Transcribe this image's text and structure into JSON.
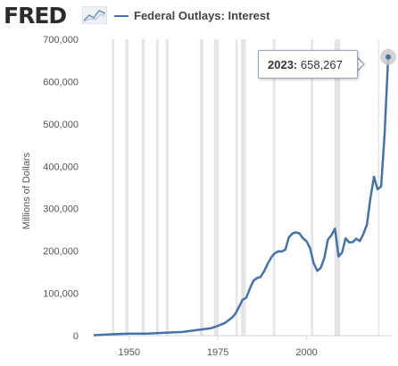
{
  "header": {
    "logo_text": "FRED",
    "logo_icon": "line-chart-icon",
    "series_name": "Federal Outlays: Interest"
  },
  "tooltip": {
    "year": "2023:",
    "value": "658,267"
  },
  "colors": {
    "series": "#4572a7",
    "recession": "#e5e5e5",
    "axis_text": "#555555"
  },
  "chart_data": {
    "type": "line",
    "title": "",
    "xlabel": "",
    "ylabel": "Millions of Dollars",
    "ylim": [
      0,
      700000
    ],
    "xlim": [
      1940,
      2024
    ],
    "grid": false,
    "legend": "top-left",
    "y_ticks": [
      "0",
      "100,000",
      "200,000",
      "300,000",
      "400,000",
      "500,000",
      "600,000",
      "700,000"
    ],
    "x_ticks": [
      "1950",
      "1975",
      "2000"
    ],
    "recessions": [
      [
        1945.1,
        1945.8
      ],
      [
        1948.9,
        1949.8
      ],
      [
        1953.5,
        1954.4
      ],
      [
        1957.6,
        1958.3
      ],
      [
        1960.3,
        1961.1
      ],
      [
        1969.9,
        1970.9
      ],
      [
        1973.9,
        1975.2
      ],
      [
        1980.0,
        1980.6
      ],
      [
        1981.5,
        1982.9
      ],
      [
        1990.5,
        1991.2
      ],
      [
        2001.2,
        2001.9
      ],
      [
        2007.9,
        2009.5
      ],
      [
        2020.1,
        2020.4
      ]
    ],
    "series": [
      {
        "name": "Federal Outlays: Interest",
        "x": [
          1940,
          1945,
          1950,
          1955,
          1960,
          1965,
          1970,
          1973,
          1975,
          1977,
          1979,
          1980,
          1981,
          1982,
          1983,
          1984,
          1985,
          1986,
          1987,
          1988,
          1989,
          1990,
          1991,
          1992,
          1993,
          1994,
          1995,
          1996,
          1997,
          1998,
          1999,
          2000,
          2001,
          2002,
          2003,
          2004,
          2005,
          2006,
          2007,
          2008,
          2009,
          2010,
          2011,
          2012,
          2013,
          2014,
          2015,
          2016,
          2017,
          2018,
          2019,
          2020,
          2021,
          2022,
          2023
        ],
        "values": [
          1000,
          3100,
          4800,
          4900,
          6900,
          8600,
          14400,
          17300,
          23200,
          29900,
          42600,
          52500,
          68800,
          85000,
          89800,
          111100,
          129500,
          136000,
          138600,
          151800,
          169000,
          184300,
          194400,
          199300,
          198700,
          202900,
          232100,
          241100,
          244000,
          241100,
          229800,
          222900,
          206200,
          170900,
          153100,
          160200,
          184000,
          226600,
          237100,
          252800,
          186900,
          196200,
          230000,
          220400,
          220900,
          229000,
          223200,
          240000,
          262600,
          325000,
          375200,
          345500,
          352300,
          475900,
          658267
        ]
      }
    ]
  }
}
